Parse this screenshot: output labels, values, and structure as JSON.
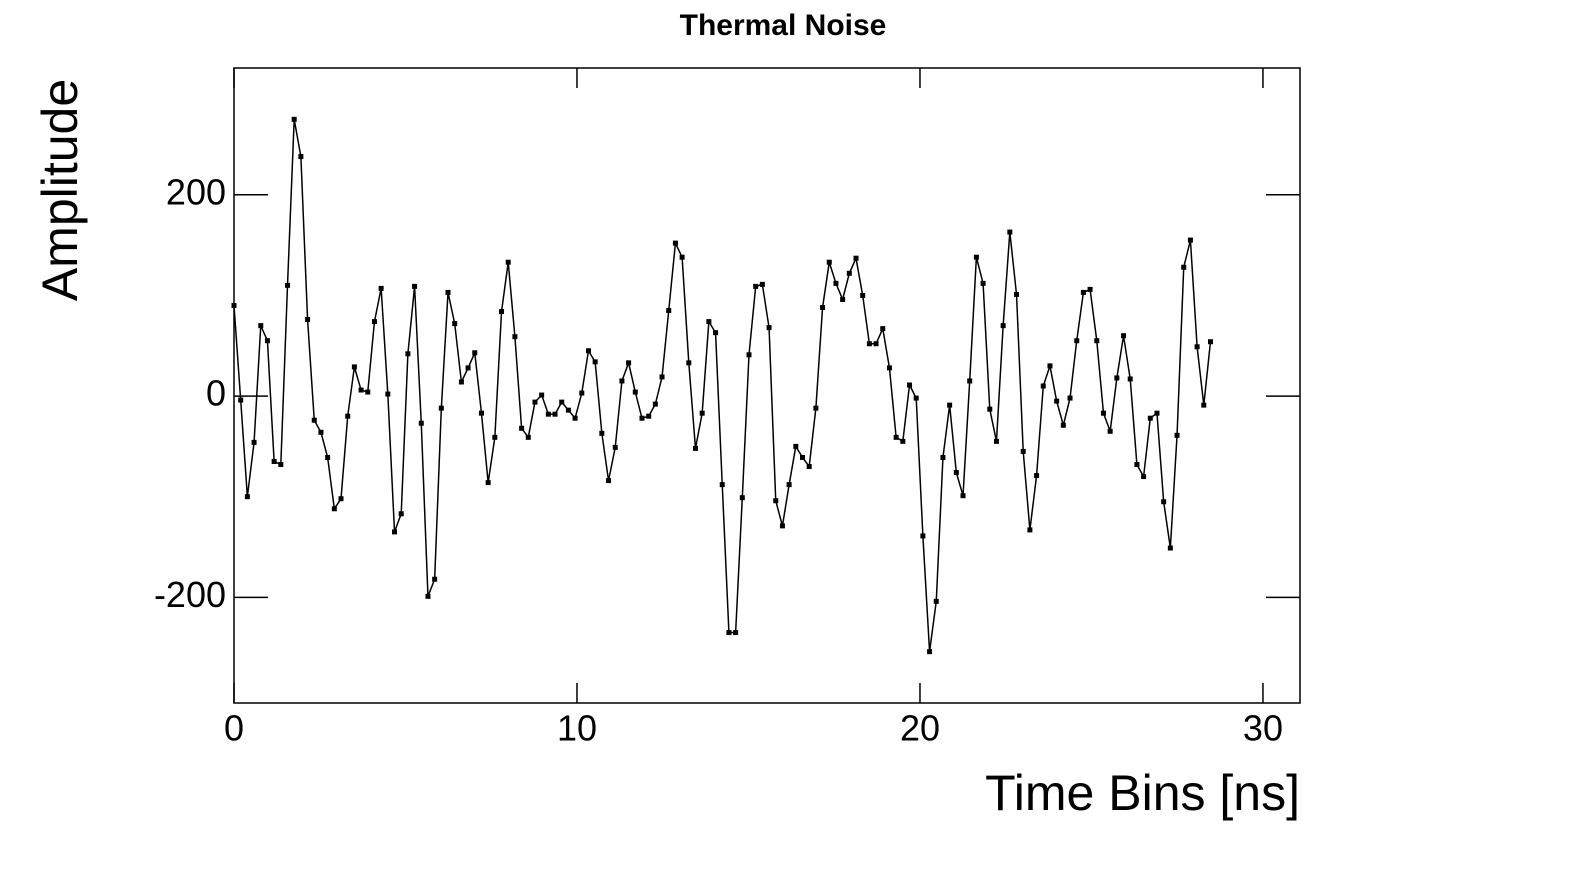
{
  "chart_data": {
    "type": "line",
    "title": "Thermal Noise",
    "x_label": "Time Bins [ns]",
    "y_label": "Amplitude",
    "xlim": [
      0,
      31.08
    ],
    "ylim": [
      -305,
      326
    ],
    "xticks": [
      0,
      10,
      20,
      30
    ],
    "yticks": [
      -200,
      0,
      200
    ],
    "series": [
      {
        "color": "#000000",
        "x": [
          0,
          0.195,
          0.39,
          0.585,
          0.78,
          0.975,
          1.17,
          1.365,
          1.56,
          1.755,
          1.95,
          2.145,
          2.34,
          2.535,
          2.73,
          2.925,
          3.12,
          3.315,
          3.51,
          3.705,
          3.9,
          4.095,
          4.29,
          4.485,
          4.68,
          4.875,
          5.07,
          5.265,
          5.46,
          5.655,
          5.85,
          6.045,
          6.24,
          6.435,
          6.63,
          6.825,
          7.02,
          7.215,
          7.41,
          7.605,
          7.8,
          7.995,
          8.19,
          8.385,
          8.58,
          8.775,
          8.97,
          9.165,
          9.36,
          9.555,
          9.75,
          9.945,
          10.14,
          10.335,
          10.53,
          10.725,
          10.92,
          11.115,
          11.31,
          11.505,
          11.7,
          11.895,
          12.09,
          12.285,
          12.48,
          12.675,
          12.87,
          13.065,
          13.26,
          13.455,
          13.65,
          13.845,
          14.04,
          14.235,
          14.43,
          14.625,
          14.82,
          15.015,
          15.21,
          15.405,
          15.6,
          15.795,
          15.99,
          16.185,
          16.38,
          16.575,
          16.77,
          16.965,
          17.16,
          17.355,
          17.55,
          17.745,
          17.94,
          18.135,
          18.33,
          18.525,
          18.72,
          18.915,
          19.11,
          19.305,
          19.5,
          19.695,
          19.89,
          20.085,
          20.28,
          20.475,
          20.67,
          20.865,
          21.06,
          21.255,
          21.45,
          21.645,
          21.84,
          22.035,
          22.23,
          22.425,
          22.62,
          22.815,
          23.01,
          23.205,
          23.4,
          23.595,
          23.79,
          23.985,
          24.18,
          24.375,
          24.57,
          24.765,
          24.96,
          25.155,
          25.35,
          25.545,
          25.74,
          25.935,
          26.13,
          26.325,
          26.52,
          26.715,
          26.91,
          27.105,
          27.3,
          27.495,
          27.69,
          27.885,
          28.08,
          28.275,
          28.47
        ],
        "values": [
          90,
          -4,
          -100,
          -46,
          70,
          55,
          -65,
          -68,
          110,
          275,
          238,
          76,
          -24,
          -36,
          -61,
          -112,
          -102,
          -20,
          29,
          6,
          4,
          74,
          107,
          2,
          -135,
          -117,
          42,
          109,
          -27,
          -199,
          -182,
          -12,
          103,
          72,
          14,
          28,
          43,
          -17,
          -86,
          -41,
          84,
          133,
          59,
          -32,
          -41,
          -6,
          1,
          -18,
          -18,
          -6,
          -14,
          -22,
          3,
          45,
          34,
          -37,
          -84,
          -51,
          15,
          33,
          4,
          -22,
          -20,
          -8,
          19,
          85,
          152,
          138,
          33,
          -52,
          -17,
          74,
          63,
          -88,
          -235,
          -235,
          -101,
          41,
          109,
          111,
          68,
          -104,
          -129,
          -88,
          -50,
          -61,
          -70,
          -12,
          88,
          133,
          112,
          96,
          122,
          137,
          100,
          52,
          52,
          67,
          28,
          -41,
          -45,
          11,
          -2,
          -139,
          -254,
          -204,
          -61,
          -9,
          -76,
          -99,
          15,
          138,
          112,
          -13,
          -45,
          70,
          163,
          101,
          -55,
          -133,
          -79,
          10,
          30,
          -5,
          -29,
          -2,
          55,
          103,
          106,
          55,
          -17,
          -35,
          18,
          60,
          17,
          -68,
          -80,
          -22,
          -17,
          -105,
          -151,
          -39,
          128,
          155,
          49,
          -9,
          54
        ]
      }
    ]
  }
}
